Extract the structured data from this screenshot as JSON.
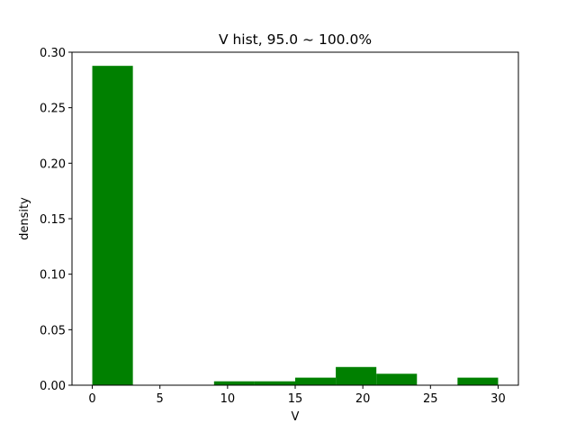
{
  "chart_data": {
    "type": "bar",
    "title": "V hist, 95.0 ~ 100.0%",
    "xlabel": "V",
    "ylabel": "density",
    "xlim": [
      -1.5,
      31.5
    ],
    "ylim": [
      0,
      0.3
    ],
    "xticks": [
      0,
      5,
      10,
      15,
      20,
      25,
      30
    ],
    "xtick_labels": [
      "0",
      "5",
      "10",
      "15",
      "20",
      "25",
      "30"
    ],
    "yticks": [
      0.0,
      0.05,
      0.1,
      0.15,
      0.2,
      0.25,
      0.3
    ],
    "ytick_labels": [
      "0.00",
      "0.05",
      "0.10",
      "0.15",
      "0.20",
      "0.25",
      "0.30"
    ],
    "bin_edges": [
      0,
      3,
      6,
      9,
      12,
      15,
      18,
      21,
      24,
      27,
      30
    ],
    "values": [
      0.2877,
      0,
      0,
      0.0035,
      0.0035,
      0.0068,
      0.0164,
      0.0103,
      0,
      0.0068
    ],
    "bar_color": "#008000",
    "grid": false,
    "legend": "none"
  }
}
